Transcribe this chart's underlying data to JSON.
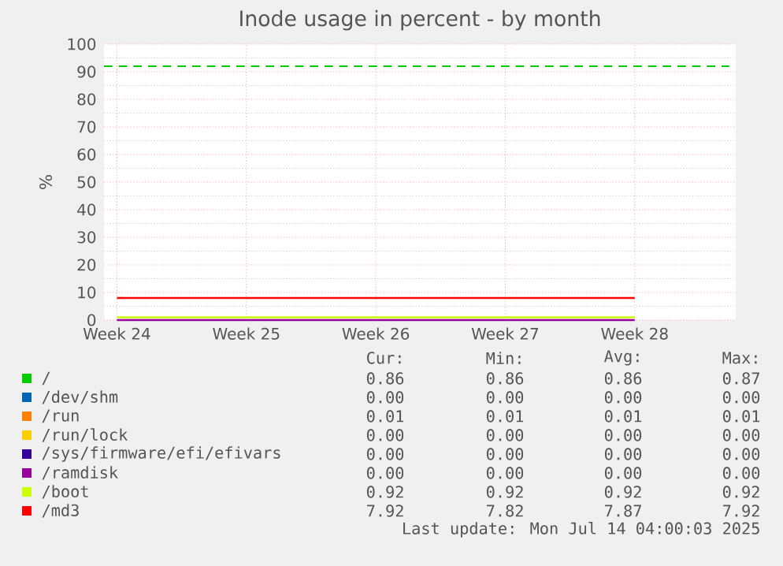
{
  "chart_data": {
    "type": "line",
    "title": "Inode usage in percent - by month",
    "ylabel": "%",
    "categories": [
      "Week 24",
      "Week 25",
      "Week 26",
      "Week 27",
      "Week 28"
    ],
    "ylim": [
      0,
      100
    ],
    "yticks": [
      0,
      10,
      20,
      30,
      40,
      50,
      60,
      70,
      80,
      90,
      100
    ],
    "grid": true,
    "legend": "bottom",
    "ref_lines": [
      {
        "axis": "y",
        "value": 92,
        "color": "#00cc00",
        "line_style": "dashed"
      }
    ],
    "series": [
      {
        "name": "/",
        "color": "#00cc00",
        "values": [
          null,
          null,
          null,
          null,
          null
        ]
      },
      {
        "name": "/dev/shm",
        "color": "#0066b3",
        "values": [
          null,
          null,
          null,
          null,
          null
        ]
      },
      {
        "name": "/run",
        "color": "#ff8000",
        "values": [
          null,
          null,
          null,
          null,
          null
        ]
      },
      {
        "name": "/run/lock",
        "color": "#ffcc00",
        "values": [
          null,
          null,
          null,
          null,
          null
        ]
      },
      {
        "name": "/sys/firmware/efi/efivars",
        "color": "#330099",
        "values": [
          null,
          null,
          null,
          null,
          null
        ]
      },
      {
        "name": "/ramdisk",
        "color": "#990099",
        "values": [
          0,
          0,
          0,
          0,
          0
        ]
      },
      {
        "name": "/boot",
        "color": "#ccff00",
        "values": [
          1,
          1,
          1,
          1,
          1
        ]
      },
      {
        "name": "/md3",
        "color": "#ff0000",
        "values": [
          8,
          8,
          8,
          8,
          8
        ]
      }
    ],
    "annotations": [
      "Cur:",
      "Min:",
      "Avg:",
      "Max:",
      "0.86",
      "0.86",
      "0.86",
      "0.87",
      "0.00",
      "0.00",
      "0.00",
      "0.00",
      "0.01",
      "0.01",
      "0.01",
      "0.01",
      "0.00",
      "0.00",
      "0.00",
      "0.00",
      "0.00",
      "0.00",
      "0.00",
      "0.00",
      "0.00",
      "0.00",
      "0.00",
      "0.00",
      "0.92",
      "0.92",
      "0.92",
      "0.92",
      "7.92",
      "7.82",
      "7.87",
      "7.92",
      "Last update: Mon Jul 14 04:00:03 2025"
    ]
  }
}
